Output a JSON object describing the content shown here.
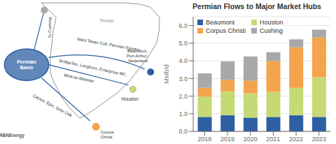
{
  "chart_data": {
    "type": "bar",
    "title": "Permian Flows to Major Market Hubs",
    "categories": [
      "2018",
      "2019",
      "2020",
      "2021",
      "2022",
      "2023"
    ],
    "series": [
      {
        "name": "Beaumont",
        "color": "#2E5FA3",
        "values": [
          0.82,
          0.92,
          0.78,
          0.82,
          0.92,
          0.82
        ]
      },
      {
        "name": "Houston",
        "color": "#C5D975",
        "values": [
          1.15,
          1.35,
          1.38,
          1.42,
          1.55,
          2.25
        ]
      },
      {
        "name": "Corpus Christi",
        "color": "#F4A44C",
        "values": [
          0.5,
          0.65,
          0.72,
          1.75,
          2.3,
          2.25
        ]
      },
      {
        "name": "Cushing",
        "color": "#A8A8A8",
        "values": [
          0.82,
          1.05,
          1.37,
          0.5,
          0.45,
          0.45
        ]
      }
    ],
    "stacked": true,
    "ylabel": "MMb/d",
    "ylim": [
      0,
      6.5
    ],
    "yticks": [
      {
        "value": 0,
        "label": "0.0"
      },
      {
        "value": 1,
        "label": "1.0"
      },
      {
        "value": 2,
        "label": "2.0"
      },
      {
        "value": 3,
        "label": "3.0"
      },
      {
        "value": 4,
        "label": "4.0"
      },
      {
        "value": 5,
        "label": "5.0"
      },
      {
        "value": 6,
        "label": "6.0"
      }
    ],
    "grid": true,
    "legend": "upper left",
    "annotations": [
      "Texas",
      "Permian\nBasin",
      "To Cushing",
      "Beaumont,\nPort Arthur,\nNederland",
      "Houston",
      "Corpus\nChristi",
      "West Texas Gulf, Permian Express",
      "BridgeTex, Longhorn, Enterprise MC,",
      "Wink-to-Webster",
      "Cactus, Epic, Gray Oak",
      "RBNEnergy"
    ]
  }
}
